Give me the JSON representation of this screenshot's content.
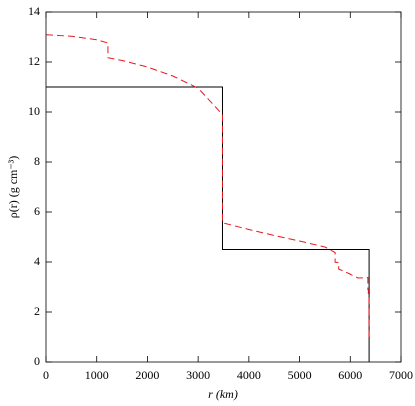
{
  "chart_data": {
    "type": "line",
    "x_label": "r (km)",
    "y_label": "ρ(r) (g cm⁻³)",
    "xlim": [
      0,
      7000
    ],
    "ylim": [
      0,
      14
    ],
    "xticks": [
      0,
      1000,
      2000,
      3000,
      4000,
      5000,
      6000,
      7000
    ],
    "yticks": [
      0,
      2,
      4,
      6,
      8,
      10,
      12,
      14
    ],
    "series": [
      {
        "color": "#000000",
        "dash": "solid",
        "x": [
          0,
          3480,
          3480,
          6371,
          6371
        ],
        "values": [
          11,
          11,
          4.5,
          4.5,
          0
        ]
      },
      {
        "color": "#e8191e",
        "dash": "dashed",
        "x": [
          0,
          500,
          1000,
          1221.5,
          1221.5,
          1500,
          2000,
          2500,
          3000,
          3480,
          3480,
          4000,
          4500,
          5000,
          5500,
          5701,
          5701,
          5771,
          5771,
          5971,
          5971,
          6151,
          6291,
          6346.6,
          6346.6,
          6356,
          6356,
          6368,
          6368,
          6371
        ],
        "values": [
          13.09,
          13.03,
          12.89,
          12.76,
          12.17,
          12.06,
          11.8,
          11.44,
          10.95,
          9.9,
          5.57,
          5.3,
          5.06,
          4.84,
          4.6,
          4.38,
          3.99,
          3.98,
          3.72,
          3.54,
          3.54,
          3.36,
          3.37,
          3.38,
          2.9,
          2.9,
          2.6,
          2.6,
          1.02,
          1.02
        ]
      }
    ]
  }
}
